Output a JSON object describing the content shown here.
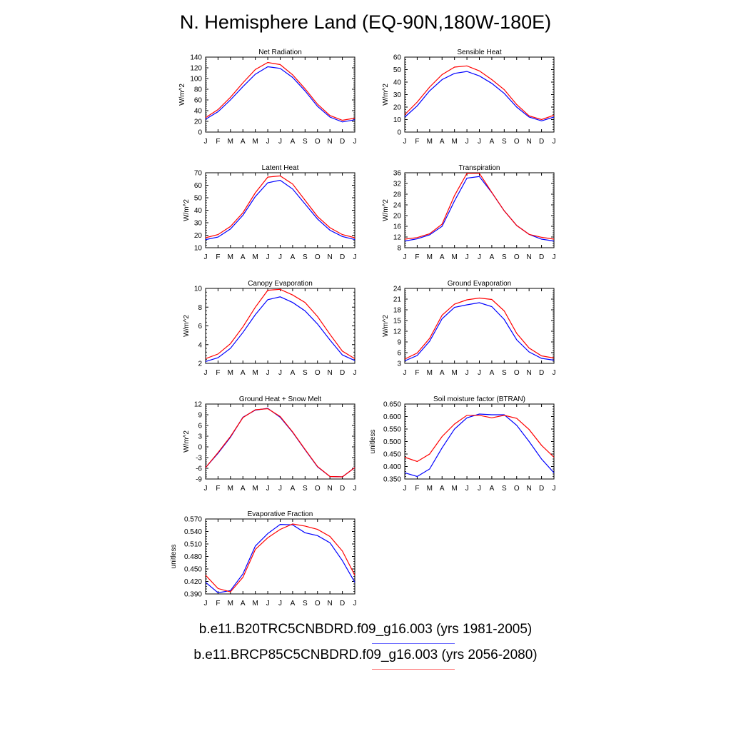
{
  "title": "N. Hemisphere Land (EQ-90N,180W-180E)",
  "legend": [
    {
      "label": "b.e11.B20TRC5CNBDRD.f09_g16.003 (yrs 1981-2005)",
      "color": "#0000ff"
    },
    {
      "label": "b.e11.BRCP85C5CNBDRD.f09_g16.003 (yrs 2056-2080)",
      "color": "#ff0000"
    }
  ],
  "chart_data": [
    {
      "type": "line",
      "title": "Net Radiation",
      "ylabel": "W/m^2",
      "categories": [
        "J",
        "F",
        "M",
        "A",
        "M",
        "J",
        "J",
        "A",
        "S",
        "O",
        "N",
        "D",
        "J"
      ],
      "ylim": [
        0,
        140
      ],
      "yticks": [
        "0",
        "20",
        "40",
        "60",
        "80",
        "100",
        "120",
        "140"
      ],
      "series": [
        {
          "color": "#0000ff",
          "values": [
            24,
            38,
            60,
            85,
            108,
            122,
            119,
            102,
            77,
            48,
            28,
            19,
            23
          ]
        },
        {
          "color": "#ff0000",
          "values": [
            27,
            42,
            65,
            92,
            117,
            130,
            126,
            107,
            81,
            52,
            31,
            22,
            26
          ]
        }
      ]
    },
    {
      "type": "line",
      "title": "Sensible Heat",
      "ylabel": "W/m^2",
      "categories": [
        "J",
        "F",
        "M",
        "A",
        "M",
        "J",
        "J",
        "A",
        "S",
        "O",
        "N",
        "D",
        "J"
      ],
      "ylim": [
        0,
        60
      ],
      "yticks": [
        "0",
        "10",
        "20",
        "30",
        "40",
        "50",
        "60"
      ],
      "series": [
        {
          "color": "#0000ff",
          "values": [
            12,
            21,
            33,
            42,
            47,
            48.5,
            45,
            39,
            31,
            20,
            12,
            9,
            12
          ]
        },
        {
          "color": "#ff0000",
          "values": [
            14,
            24,
            36,
            46,
            52,
            53,
            49,
            42,
            34,
            22,
            13,
            10,
            13.5
          ]
        }
      ]
    },
    {
      "type": "line",
      "title": "Latent Heat",
      "ylabel": "W/m^2",
      "categories": [
        "J",
        "F",
        "M",
        "A",
        "M",
        "J",
        "J",
        "A",
        "S",
        "O",
        "N",
        "D",
        "J"
      ],
      "ylim": [
        10,
        70
      ],
      "yticks": [
        "10",
        "20",
        "30",
        "40",
        "50",
        "60",
        "70"
      ],
      "series": [
        {
          "color": "#0000ff",
          "values": [
            16.5,
            18.5,
            25,
            36,
            51,
            62,
            64,
            57,
            45,
            33,
            24,
            19,
            16.5
          ]
        },
        {
          "color": "#ff0000",
          "values": [
            18,
            20.5,
            27,
            38,
            54,
            66.5,
            67.5,
            61,
            48,
            35,
            26,
            20.5,
            18
          ]
        }
      ]
    },
    {
      "type": "line",
      "title": "Transpiration",
      "ylabel": "W/m^2",
      "categories": [
        "J",
        "F",
        "M",
        "A",
        "M",
        "J",
        "J",
        "A",
        "S",
        "O",
        "N",
        "D",
        "J"
      ],
      "ylim": [
        8,
        36
      ],
      "yticks": [
        "8",
        "12",
        "16",
        "20",
        "24",
        "28",
        "32",
        "36"
      ],
      "series": [
        {
          "color": "#0000ff",
          "values": [
            10.5,
            11.3,
            12.8,
            16,
            25.5,
            34,
            34.6,
            28.6,
            21.8,
            16.3,
            13,
            11.2,
            10.5
          ]
        },
        {
          "color": "#ff0000",
          "values": [
            11.2,
            11.8,
            13.2,
            16.8,
            27.5,
            35.8,
            35.8,
            28.7,
            21.8,
            16.3,
            13,
            11.9,
            11.2
          ]
        }
      ]
    },
    {
      "type": "line",
      "title": "Canopy Evaporation",
      "ylabel": "W/m^2",
      "categories": [
        "J",
        "F",
        "M",
        "A",
        "M",
        "J",
        "J",
        "A",
        "S",
        "O",
        "N",
        "D",
        "J"
      ],
      "ylim": [
        2,
        10
      ],
      "yticks": [
        "2",
        "4",
        "6",
        "8",
        "10"
      ],
      "series": [
        {
          "color": "#0000ff",
          "values": [
            2.2,
            2.6,
            3.6,
            5.3,
            7.2,
            8.8,
            9.1,
            8.5,
            7.6,
            6.2,
            4.5,
            2.9,
            2.3
          ]
        },
        {
          "color": "#ff0000",
          "values": [
            2.5,
            3.0,
            4.1,
            5.9,
            8.0,
            9.8,
            9.9,
            9.3,
            8.5,
            7.0,
            5.1,
            3.3,
            2.5
          ]
        }
      ]
    },
    {
      "type": "line",
      "title": "Ground Evaporation",
      "ylabel": "W/m^2",
      "categories": [
        "J",
        "F",
        "M",
        "A",
        "M",
        "J",
        "J",
        "A",
        "S",
        "O",
        "N",
        "D",
        "J"
      ],
      "ylim": [
        3,
        24
      ],
      "yticks": [
        "3",
        "6",
        "9",
        "12",
        "15",
        "18",
        "21",
        "24"
      ],
      "series": [
        {
          "color": "#0000ff",
          "values": [
            3.7,
            5.2,
            9.2,
            15.5,
            18.7,
            19.4,
            20,
            18.9,
            15.3,
            9.6,
            6.2,
            4.4,
            3.9
          ]
        },
        {
          "color": "#ff0000",
          "values": [
            4.2,
            5.9,
            10,
            16.5,
            19.6,
            20.8,
            21.3,
            20.9,
            17.7,
            11.4,
            7.3,
            5.1,
            4.5
          ]
        }
      ]
    },
    {
      "type": "line",
      "title": "Ground Heat + Snow Melt",
      "ylabel": "W/m^2",
      "categories": [
        "J",
        "F",
        "M",
        "A",
        "M",
        "J",
        "J",
        "A",
        "S",
        "O",
        "N",
        "D",
        "J"
      ],
      "ylim": [
        -9,
        12
      ],
      "yticks": [
        "-9",
        "-6",
        "-3",
        "0",
        "3",
        "6",
        "9",
        "12"
      ],
      "series": [
        {
          "color": "#0000ff",
          "values": [
            -5.8,
            -1.8,
            2.7,
            8.3,
            10.3,
            10.8,
            8.3,
            4.1,
            -0.8,
            -5.6,
            -8.3,
            -8.4,
            -5.8
          ]
        },
        {
          "color": "#ff0000",
          "values": [
            -5.8,
            -1.6,
            2.9,
            8.2,
            10.4,
            10.7,
            8.5,
            4.2,
            -0.7,
            -5.5,
            -8.3,
            -8.4,
            -5.8
          ]
        }
      ]
    },
    {
      "type": "line",
      "title": "Soil moisture factor (BTRAN)",
      "ylabel": "unitless",
      "categories": [
        "J",
        "F",
        "M",
        "A",
        "M",
        "J",
        "J",
        "A",
        "S",
        "O",
        "N",
        "D",
        "J"
      ],
      "ylim": [
        0.35,
        0.65
      ],
      "yticks": [
        "0.350",
        "0.400",
        "0.450",
        "0.500",
        "0.550",
        "0.600",
        "0.650"
      ],
      "series": [
        {
          "color": "#0000ff",
          "values": [
            0.375,
            0.36,
            0.39,
            0.475,
            0.55,
            0.595,
            0.61,
            0.607,
            0.607,
            0.565,
            0.5,
            0.43,
            0.375
          ]
        },
        {
          "color": "#ff0000",
          "values": [
            0.437,
            0.42,
            0.45,
            0.52,
            0.57,
            0.605,
            0.605,
            0.595,
            0.605,
            0.593,
            0.548,
            0.485,
            0.437
          ]
        }
      ]
    },
    {
      "type": "line",
      "title": "Evaporative Fraction",
      "ylabel": "unitless",
      "categories": [
        "J",
        "F",
        "M",
        "A",
        "M",
        "J",
        "J",
        "A",
        "S",
        "O",
        "N",
        "D",
        "J"
      ],
      "ylim": [
        0.39,
        0.57
      ],
      "yticks": [
        "0.390",
        "0.420",
        "0.450",
        "0.480",
        "0.510",
        "0.540",
        "0.570"
      ],
      "series": [
        {
          "color": "#0000ff",
          "values": [
            0.418,
            0.393,
            0.398,
            0.438,
            0.505,
            0.535,
            0.557,
            0.556,
            0.537,
            0.53,
            0.513,
            0.47,
            0.418
          ]
        },
        {
          "color": "#ff0000",
          "values": [
            0.435,
            0.403,
            0.395,
            0.43,
            0.497,
            0.525,
            0.545,
            0.558,
            0.553,
            0.545,
            0.528,
            0.493,
            0.435
          ]
        }
      ]
    }
  ]
}
